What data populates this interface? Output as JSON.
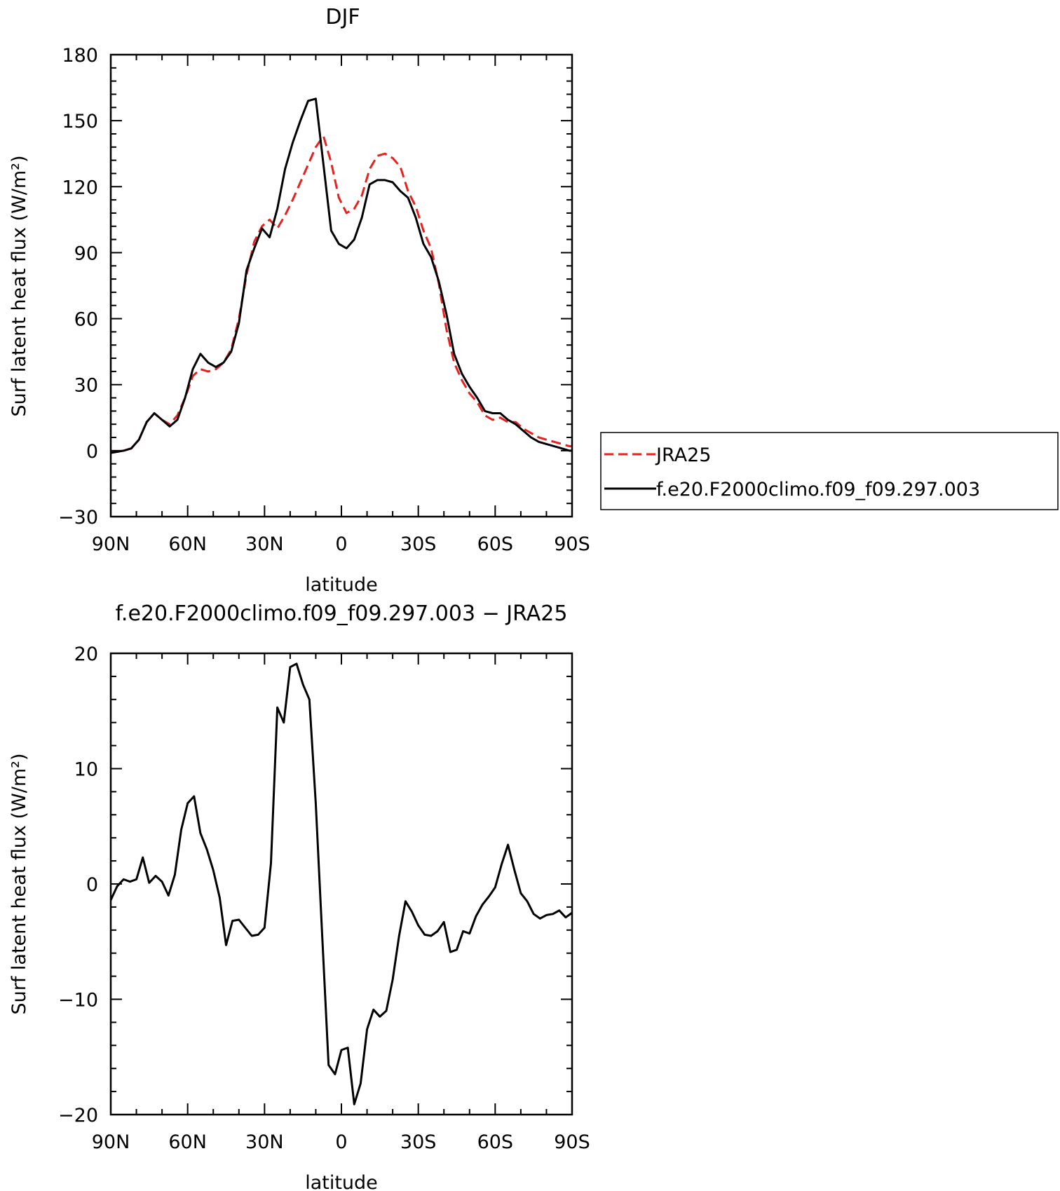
{
  "chart_data": [
    {
      "type": "line",
      "title": "DJF",
      "xlabel": "latitude",
      "ylabel": "Surf latent heat flux (W/m²)",
      "xlim": [
        -90,
        90
      ],
      "ylim": [
        -30,
        180
      ],
      "x_ticks": [
        -90,
        -60,
        -30,
        0,
        30,
        60,
        90
      ],
      "x_tick_labels": [
        "90N",
        "60N",
        "30N",
        "0",
        "30S",
        "60S",
        "90S"
      ],
      "y_ticks": [
        -30,
        0,
        30,
        60,
        90,
        120,
        150,
        180
      ],
      "y_tick_labels": [
        "−30",
        "0",
        "30",
        "60",
        "90",
        "120",
        "150",
        "180"
      ],
      "grid": false,
      "legend_position": "right",
      "series": [
        {
          "name": "JRA25",
          "color": "#e8201e",
          "style": "dashed",
          "x": [
            -90,
            -85,
            -82,
            -79,
            -76,
            -73,
            -70,
            -67,
            -64,
            -61,
            -58,
            -55,
            -52,
            -49,
            -46,
            -43,
            -40,
            -37,
            -34,
            -31,
            -28,
            -25,
            -22,
            -19,
            -16,
            -13,
            -10,
            -7,
            -4,
            -1,
            2,
            5,
            8,
            11,
            14,
            17,
            20,
            23,
            26,
            29,
            32,
            35,
            38,
            41,
            44,
            47,
            50,
            53,
            56,
            59,
            62,
            65,
            68,
            71,
            74,
            77,
            80,
            83,
            86,
            89,
            90
          ],
          "y": [
            -1,
            0,
            1,
            5,
            13,
            17,
            14,
            12,
            16,
            24,
            34,
            37,
            36,
            37,
            40,
            46,
            60,
            80,
            95,
            102,
            105,
            101,
            107,
            114,
            122,
            130,
            138,
            143,
            131,
            115,
            108,
            110,
            116,
            128,
            134,
            135,
            133,
            129,
            118,
            111,
            100,
            92,
            76,
            55,
            40,
            32,
            26,
            22,
            16,
            14,
            15,
            13,
            13,
            10,
            8,
            6,
            5,
            4,
            3,
            2,
            2
          ]
        },
        {
          "name": "f.e20.F2000climo.f09_f09.297.003",
          "color": "#000000",
          "style": "solid",
          "x": [
            -90,
            -85,
            -82,
            -79,
            -76,
            -73,
            -70,
            -67,
            -64,
            -61,
            -58,
            -55,
            -52,
            -49,
            -46,
            -43,
            -40,
            -37,
            -34,
            -31,
            -28,
            -25,
            -22,
            -19,
            -16,
            -13,
            -10,
            -7,
            -4,
            -1,
            2,
            5,
            8,
            11,
            14,
            17,
            20,
            23,
            26,
            29,
            32,
            35,
            38,
            41,
            44,
            47,
            50,
            53,
            56,
            59,
            62,
            65,
            68,
            71,
            74,
            77,
            80,
            83,
            86,
            89,
            90
          ],
          "y": [
            -1,
            0,
            1,
            5,
            13,
            17,
            14,
            11,
            14,
            24,
            37,
            44,
            40,
            38,
            40,
            45,
            58,
            82,
            92,
            101,
            97,
            110,
            128,
            140,
            150,
            159,
            160,
            130,
            100,
            94,
            92,
            96,
            106,
            121,
            123,
            123,
            122,
            118,
            115,
            106,
            94,
            88,
            77,
            62,
            44,
            35,
            29,
            24,
            18,
            17,
            17,
            14,
            12,
            9,
            6,
            4,
            3,
            2,
            1,
            0,
            0
          ]
        }
      ]
    },
    {
      "type": "line",
      "title": "f.e20.F2000climo.f09_f09.297.003 − JRA25",
      "xlabel": "latitude",
      "ylabel": "Surf latent heat flux (W/m²)",
      "xlim": [
        -90,
        90
      ],
      "ylim": [
        -20,
        20
      ],
      "x_ticks": [
        -90,
        -60,
        -30,
        0,
        30,
        60,
        90
      ],
      "x_tick_labels": [
        "90N",
        "60N",
        "30N",
        "0",
        "30S",
        "60S",
        "90S"
      ],
      "y_ticks": [
        -20,
        -10,
        0,
        10,
        20
      ],
      "y_tick_labels": [
        "−20",
        "−10",
        "0",
        "10",
        "20"
      ],
      "grid": false,
      "series": [
        {
          "color": "#000000",
          "style": "solid",
          "x": [
            -90,
            -87.5,
            -85,
            -82.5,
            -80,
            -77.5,
            -75,
            -72.5,
            -70,
            -67.5,
            -65,
            -62.5,
            -60,
            -57.5,
            -55,
            -52.5,
            -50,
            -47.5,
            -45,
            -42.5,
            -40,
            -37.5,
            -35,
            -32.5,
            -30,
            -27.5,
            -25,
            -22.5,
            -20,
            -17.5,
            -15,
            -12.5,
            -10,
            -7.5,
            -5,
            -2.5,
            0,
            2.5,
            5,
            7.5,
            10,
            12.5,
            15,
            17.5,
            20,
            22.5,
            25,
            27.5,
            30,
            32.5,
            35,
            37.5,
            40,
            42.5,
            45,
            47.5,
            50,
            52.5,
            55,
            57.5,
            60,
            62.5,
            65,
            67.5,
            70,
            72.5,
            75,
            77.5,
            80,
            82.5,
            85,
            87.5,
            90
          ],
          "y": [
            -1.4,
            -0.2,
            0.4,
            0.2,
            0.4,
            2.3,
            0.1,
            0.7,
            0.2,
            -1.0,
            0.8,
            4.7,
            7.0,
            7.6,
            4.4,
            3.0,
            1.2,
            -1.2,
            -5.3,
            -3.2,
            -3.1,
            -3.8,
            -4.5,
            -4.4,
            -3.8,
            1.8,
            15.3,
            14.0,
            18.8,
            19.1,
            17.3,
            16.0,
            7.0,
            -4.5,
            -15.7,
            -16.5,
            -14.4,
            -14.2,
            -19.1,
            -17.3,
            -12.6,
            -10.9,
            -11.5,
            -11.0,
            -8.3,
            -4.5,
            -1.5,
            -2.4,
            -3.6,
            -4.4,
            -4.5,
            -4.1,
            -3.3,
            -5.9,
            -5.7,
            -4.1,
            -4.3,
            -2.8,
            -1.8,
            -1.1,
            -0.3,
            1.7,
            3.4,
            1.2,
            -0.8,
            -1.5,
            -2.6,
            -3.0,
            -2.7,
            -2.6,
            -2.3,
            -2.9,
            -2.5
          ]
        }
      ]
    }
  ]
}
